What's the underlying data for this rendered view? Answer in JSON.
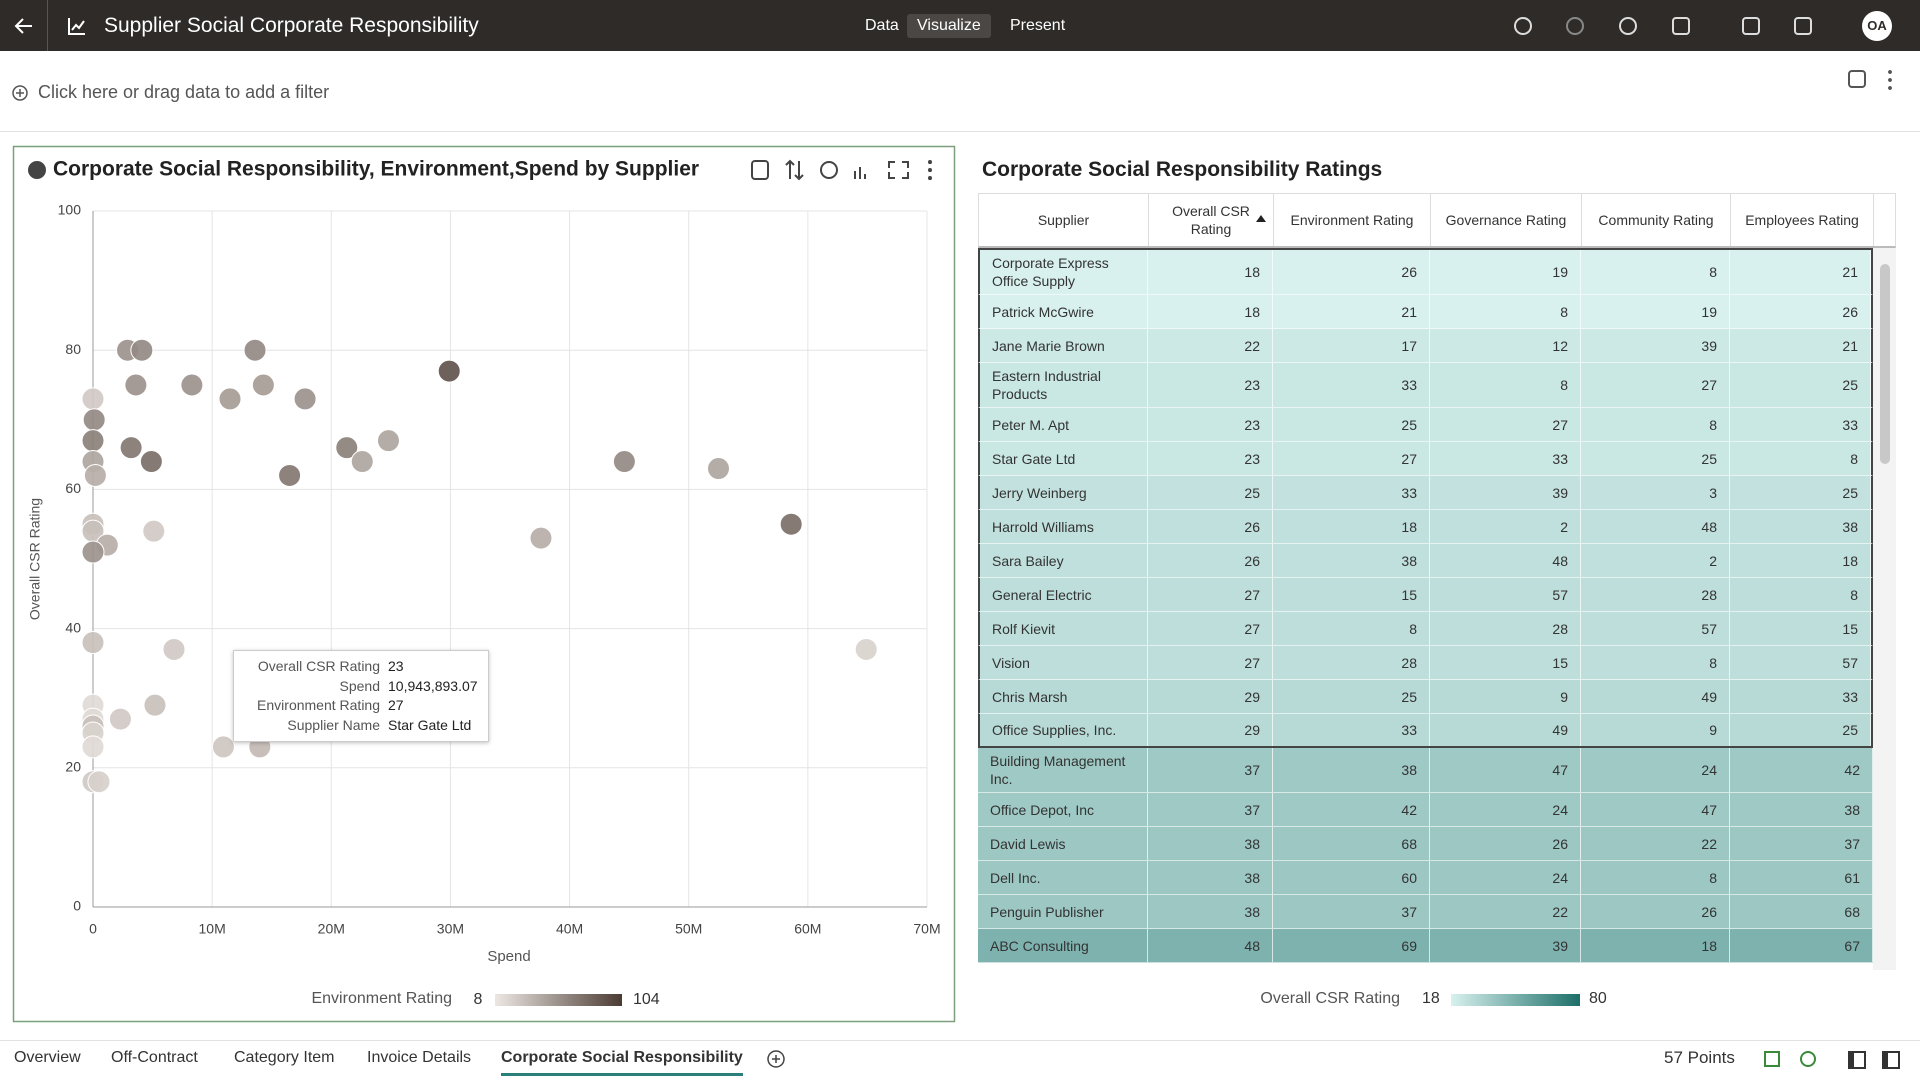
{
  "header": {
    "title": "Supplier Social Corporate Responsibility",
    "tabs": [
      "Data",
      "Visualize",
      "Present"
    ],
    "active_tab": 1,
    "avatar": "OA"
  },
  "filter_bar": {
    "placeholder": "Click here or drag data to add a filter"
  },
  "chart_data": {
    "type": "scatter",
    "title": "Corporate Social Responsibility, Environment,Spend by Supplier",
    "x_label": "Spend",
    "y_label": "Overall CSR Rating",
    "x": [
      2900000,
      4100000,
      13600000,
      3600000,
      8300000,
      14300000,
      11500000,
      17800000,
      29900000,
      0,
      100000,
      0,
      3200000,
      21300000,
      24800000,
      0,
      4900000,
      22600000,
      44600000,
      52500000,
      16500000,
      200000,
      0,
      0,
      1200000,
      0,
      5100000,
      37600000,
      58600000,
      0,
      6800000,
      64900000,
      0,
      5200000,
      2300000,
      0,
      0,
      0,
      0,
      10943893.07,
      14000000,
      0,
      500000
    ],
    "values": [
      80,
      80,
      80,
      75,
      75,
      75,
      73,
      73,
      77,
      73,
      70,
      67,
      66,
      66,
      67,
      64,
      64,
      64,
      64,
      63,
      62,
      62,
      55,
      54,
      52,
      51,
      54,
      53,
      55,
      38,
      37,
      37,
      29,
      29,
      27,
      27,
      26,
      25,
      23,
      23,
      23,
      18,
      18
    ],
    "color_values": [
      55,
      60,
      60,
      55,
      55,
      50,
      50,
      55,
      90,
      25,
      60,
      65,
      70,
      65,
      45,
      45,
      75,
      45,
      60,
      45,
      70,
      40,
      30,
      30,
      40,
      55,
      25,
      40,
      75,
      30,
      25,
      20,
      15,
      30,
      25,
      15,
      30,
      20,
      15,
      27,
      33,
      25,
      21
    ],
    "color_label": "Environment Rating",
    "color_range": [
      8,
      104
    ],
    "color_scale": [
      "#ede7e3",
      "#4a3b33"
    ],
    "xlim": [
      0,
      70000000
    ],
    "xticks": [
      0,
      {
        "value": 10000000,
        "label": "10M"
      },
      {
        "value": 20000000,
        "label": "20M"
      },
      {
        "value": 30000000,
        "label": "30M"
      },
      {
        "value": 40000000,
        "label": "40M"
      },
      {
        "value": 50000000,
        "label": "50M"
      },
      {
        "value": 60000000,
        "label": "60M"
      },
      {
        "value": 70000000,
        "label": "70M"
      }
    ],
    "ylim": [
      0,
      100
    ],
    "yticks": [
      0,
      20,
      40,
      60,
      80,
      100
    ],
    "grid": true,
    "tooltip": {
      "rows": [
        [
          "Overall CSR Rating",
          "23"
        ],
        [
          "Spend",
          "10,943,893.07"
        ],
        [
          "Environment Rating",
          "27"
        ],
        [
          "Supplier Name",
          "Star Gate Ltd"
        ]
      ]
    }
  },
  "table": {
    "title": "Corporate Social Responsibility Ratings",
    "columns": [
      "Supplier",
      "Overall CSR Rating",
      "Environment Rating",
      "Governance Rating",
      "Community Rating",
      "Employees Rating"
    ],
    "rows": [
      [
        "Corporate Express Office Supply",
        18,
        26,
        19,
        8,
        21
      ],
      [
        "Patrick McGwire",
        18,
        21,
        8,
        19,
        26
      ],
      [
        "Jane Marie Brown",
        22,
        17,
        12,
        39,
        21
      ],
      [
        "Eastern Industrial Products",
        23,
        33,
        8,
        27,
        25
      ],
      [
        "Peter M. Apt",
        23,
        25,
        27,
        8,
        33
      ],
      [
        "Star Gate Ltd",
        23,
        27,
        33,
        25,
        8
      ],
      [
        "Jerry Weinberg",
        25,
        33,
        39,
        3,
        25
      ],
      [
        "Harrold Williams",
        26,
        18,
        2,
        48,
        38
      ],
      [
        "Sara Bailey",
        26,
        38,
        48,
        2,
        18
      ],
      [
        "General Electric",
        27,
        15,
        57,
        28,
        8
      ],
      [
        "Rolf Kievit",
        27,
        8,
        28,
        57,
        15
      ],
      [
        "Vision",
        27,
        28,
        15,
        8,
        57
      ],
      [
        "Chris Marsh",
        29,
        25,
        9,
        49,
        33
      ],
      [
        "Office Supplies, Inc.",
        29,
        33,
        49,
        9,
        25
      ],
      [
        "Building Management Inc.",
        37,
        38,
        47,
        24,
        42
      ],
      [
        "Office Depot, Inc",
        37,
        42,
        24,
        47,
        38
      ],
      [
        "David Lewis",
        38,
        68,
        26,
        22,
        37
      ],
      [
        "Dell Inc.",
        38,
        60,
        24,
        8,
        61
      ],
      [
        "Penguin Publisher",
        38,
        37,
        22,
        26,
        68
      ],
      [
        "ABC Consulting",
        48,
        69,
        39,
        18,
        67
      ]
    ],
    "color_label": "Overall CSR Rating",
    "color_range": [
      18,
      80
    ],
    "color_scale": [
      "#d8f1ee",
      "#1d6f69"
    ]
  },
  "footer": {
    "tabs": [
      "Overview",
      "Off-Contract",
      "Category Item",
      "Invoice Details",
      "Corporate Social Responsibility"
    ],
    "active_tab": 4,
    "points": "57 Points"
  }
}
